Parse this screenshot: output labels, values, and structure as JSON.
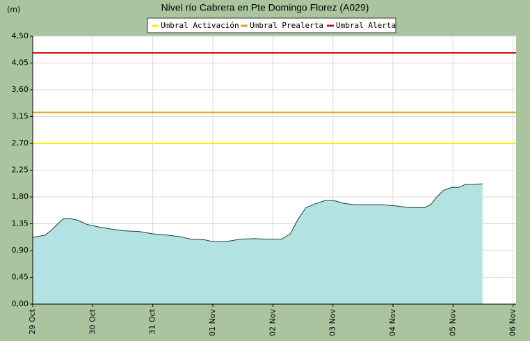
{
  "chart_data": {
    "type": "area",
    "title": "Nivel río Cabrera en Pte Domingo Florez  (A029)",
    "y_label": "(m)",
    "color": "#b2e2e2",
    "line_color": "#1e3c3c",
    "grid": true,
    "x": [
      0,
      0.21,
      0.32,
      0.44,
      0.52,
      0.61,
      0.75,
      0.9,
      1.08,
      1.31,
      1.54,
      1.77,
      2.0,
      2.23,
      2.47,
      2.64,
      2.87,
      2.99,
      3.22,
      3.45,
      3.68,
      3.91,
      4.14,
      4.29,
      4.41,
      4.55,
      4.72,
      4.87,
      5.01,
      5.19,
      5.36,
      5.59,
      5.82,
      6.05,
      6.28,
      6.52,
      6.63,
      6.72,
      6.84,
      6.98,
      7.09,
      7.21,
      7.33,
      7.49
    ],
    "values": [
      1.12,
      1.16,
      1.25,
      1.37,
      1.44,
      1.44,
      1.41,
      1.34,
      1.3,
      1.26,
      1.23,
      1.22,
      1.18,
      1.16,
      1.13,
      1.09,
      1.08,
      1.05,
      1.05,
      1.09,
      1.1,
      1.09,
      1.09,
      1.18,
      1.41,
      1.62,
      1.69,
      1.74,
      1.74,
      1.69,
      1.67,
      1.67,
      1.67,
      1.65,
      1.62,
      1.62,
      1.67,
      1.79,
      1.91,
      1.96,
      1.96,
      2.01,
      2.01,
      2.02
    ],
    "thresholds": [
      {
        "name": "Umbral Activación",
        "color": "#f0f000",
        "value": 2.7
      },
      {
        "name": "Umbral Prealerta",
        "color": "#e8a020",
        "value": 3.22
      },
      {
        "name": "Umbral Alerta",
        "color": "#d01010",
        "value": 4.22
      }
    ],
    "xlim": [
      0,
      8.05
    ],
    "xticks": [
      {
        "value": 0,
        "label": "29 Oct"
      },
      {
        "value": 1,
        "label": "30 Oct"
      },
      {
        "value": 2,
        "label": "31 Oct"
      },
      {
        "value": 3,
        "label": "01 Nov"
      },
      {
        "value": 4,
        "label": "02 Nov"
      },
      {
        "value": 5,
        "label": "03 Nov"
      },
      {
        "value": 6,
        "label": "04 Nov"
      },
      {
        "value": 7,
        "label": "05 Nov"
      },
      {
        "value": 8,
        "label": "06 Nov"
      }
    ],
    "ylim": [
      0,
      4.5
    ],
    "yticks": [
      {
        "value": 0,
        "label": "0,00"
      },
      {
        "value": 0.45,
        "label": "0,45"
      },
      {
        "value": 0.9,
        "label": "0,90"
      },
      {
        "value": 1.35,
        "label": "1,35"
      },
      {
        "value": 1.8,
        "label": "1,80"
      },
      {
        "value": 2.25,
        "label": "2,25"
      },
      {
        "value": 2.7,
        "label": "2,70"
      },
      {
        "value": 3.15,
        "label": "3,15"
      },
      {
        "value": 3.6,
        "label": "3,60"
      },
      {
        "value": 4.05,
        "label": "4,05"
      },
      {
        "value": 4.5,
        "label": "4,50"
      }
    ]
  }
}
